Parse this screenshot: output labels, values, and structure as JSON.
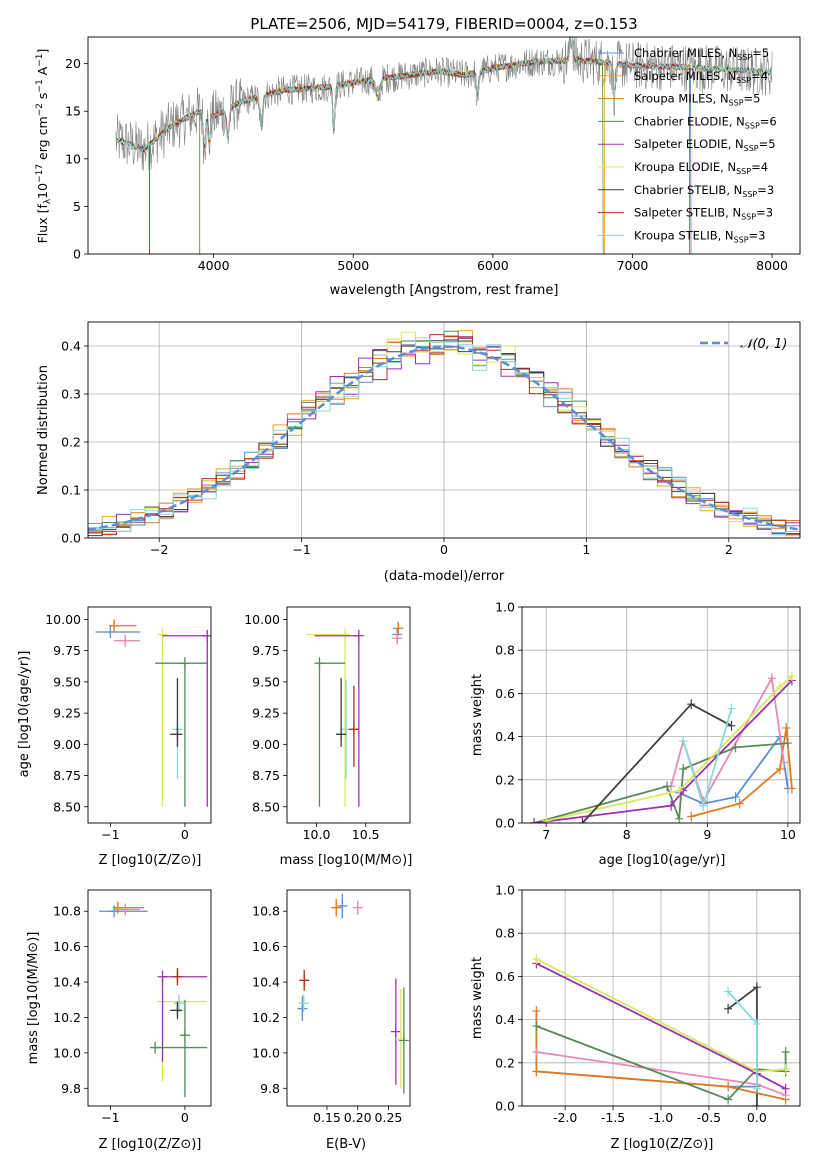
{
  "chart_data": [
    {
      "id": "spectrum",
      "type": "line",
      "title": "PLATE=2506, MJD=54179, FIBERID=0004, z=0.153",
      "xlabel": "wavelength [Angstrom, rest frame]",
      "ylabel": "Flux [f_λ 10^-17 erg cm^-2 s^-1 A^-1]",
      "xlim": [
        3100,
        8200
      ],
      "ylim": [
        0,
        22.8
      ],
      "xticks": [
        4000,
        5000,
        6000,
        7000,
        8000
      ],
      "yticks": [
        0,
        5,
        10,
        15,
        20
      ],
      "legend_placement": "top-right",
      "legend": [
        {
          "name": "Chabrier MILES",
          "nssp": "5",
          "color": "#5b8ed6"
        },
        {
          "name": "Salpeter MILES",
          "nssp": "4",
          "color": "#f0a030"
        },
        {
          "name": "Kroupa MILES",
          "nssp": "5",
          "color": "#e07b20"
        },
        {
          "name": "Chabrier ELODIE",
          "nssp": "6",
          "color": "#5a8a5a"
        },
        {
          "name": "Salpeter ELODIE",
          "nssp": "5",
          "color": "#9b30b0"
        },
        {
          "name": "Kroupa ELODIE",
          "nssp": "4",
          "color": "#d8e860"
        },
        {
          "name": "Chabrier STELIB",
          "nssp": "3",
          "color": "#404040"
        },
        {
          "name": "Salpeter STELIB",
          "nssp": "3",
          "color": "#b03020"
        },
        {
          "name": "Kroupa STELIB",
          "nssp": "3",
          "color": "#8adada"
        }
      ],
      "data_color": "#808080",
      "continuum": [
        [
          3300,
          12.0
        ],
        [
          3500,
          11.0
        ],
        [
          3700,
          13.5
        ],
        [
          3900,
          15.0
        ],
        [
          4000,
          14.5
        ],
        [
          4200,
          16.0
        ],
        [
          4500,
          17.2
        ],
        [
          4800,
          17.5
        ],
        [
          5000,
          18.0
        ],
        [
          5300,
          18.6
        ],
        [
          5600,
          19.2
        ],
        [
          5800,
          18.8
        ],
        [
          6000,
          19.5
        ],
        [
          6300,
          20.2
        ],
        [
          6600,
          20.4
        ],
        [
          7000,
          19.8
        ],
        [
          7400,
          19.6
        ],
        [
          7800,
          19.3
        ],
        [
          8000,
          19.1
        ]
      ]
    },
    {
      "id": "residuals",
      "type": "step",
      "xlabel": "(data-model)/error",
      "ylabel": "Normed distribution",
      "xlim": [
        -2.5,
        2.5
      ],
      "ylim": [
        0,
        0.45
      ],
      "xticks": [
        -2,
        -1,
        0,
        1,
        2
      ],
      "yticks": [
        0.0,
        0.1,
        0.2,
        0.3,
        0.4
      ],
      "grid": true,
      "legend": "N(0,1)",
      "bin_width": 0.1
    },
    {
      "id": "age_vs_Z",
      "type": "errorbar",
      "xlabel": "Z [log10(Z/Z⊙)]",
      "ylabel": "age  [log10(age/yr)]",
      "xlim": [
        -1.3,
        0.35
      ],
      "ylim": [
        8.37,
        10.1
      ],
      "xticks": [
        -1,
        0
      ],
      "yticks": [
        8.5,
        8.75,
        9.0,
        9.25,
        9.5,
        9.75,
        10.0
      ],
      "points": [
        {
          "x": -1.0,
          "y": 9.9,
          "xerr": [
            0.2,
            0.4
          ],
          "yerr": [
            0.0,
            0.0
          ],
          "color": "#5b8ed6"
        },
        {
          "x": -0.95,
          "y": 9.95,
          "xerr": [
            0.05,
            0.3
          ],
          "yerr": [
            0.05,
            0.05
          ],
          "color": "#e07b20"
        },
        {
          "x": -0.8,
          "y": 9.83,
          "xerr": [
            0.15,
            0.2
          ],
          "yerr": [
            0.05,
            0.05
          ],
          "color": "#e889b8"
        },
        {
          "x": -0.3,
          "y": 9.88,
          "xerr": [
            0.0,
            0.0
          ],
          "yerr": [
            1.38,
            0.0
          ],
          "color": "#d8e860"
        },
        {
          "x": 0.3,
          "y": 9.87,
          "xerr": [
            0.6,
            0.0
          ],
          "yerr": [
            1.37,
            0.0
          ],
          "color": "#9b30b0"
        },
        {
          "x": 0.0,
          "y": 9.65,
          "xerr": [
            0.4,
            0.3
          ],
          "yerr": [
            1.15,
            0.0
          ],
          "color": "#5a8a5a"
        },
        {
          "x": -0.1,
          "y": 9.12,
          "xerr": [
            0.05,
            0.05
          ],
          "yerr": [
            0.4,
            0.4
          ],
          "color": "#8adada"
        },
        {
          "x": -0.1,
          "y": 9.08,
          "xerr": [
            0.1,
            0.05
          ],
          "yerr": [
            0.1,
            0.45
          ],
          "color": "#404040"
        }
      ]
    },
    {
      "id": "age_vs_mass",
      "type": "errorbar",
      "xlabel": "mass [log10(M/M⊙)]",
      "ylabel": "",
      "xlim": [
        9.7,
        10.95
      ],
      "ylim": [
        8.37,
        10.1
      ],
      "xticks": [
        10.0,
        10.5
      ],
      "yticks": [
        8.5,
        8.75,
        9.0,
        9.25,
        9.5,
        9.75,
        10.0
      ],
      "points": [
        {
          "x": 10.83,
          "y": 9.93,
          "xerr": [
            0.02,
            0.02
          ],
          "yerr": [
            0.05,
            0.05
          ],
          "color": "#e07b20"
        },
        {
          "x": 10.82,
          "y": 9.88,
          "xerr": [
            0.01,
            0.02
          ],
          "yerr": [
            0.05,
            0.05
          ],
          "color": "#5b8ed6"
        },
        {
          "x": 10.82,
          "y": 9.85,
          "xerr": [
            0.02,
            0.02
          ],
          "yerr": [
            0.05,
            0.05
          ],
          "color": "#e889b8"
        },
        {
          "x": 10.29,
          "y": 9.88,
          "xerr": [
            0.39,
            0.0
          ],
          "yerr": [
            1.38,
            0.0
          ],
          "color": "#d8e860"
        },
        {
          "x": 10.43,
          "y": 9.87,
          "xerr": [
            0.45,
            0.0
          ],
          "yerr": [
            1.37,
            0.0
          ],
          "color": "#9b30b0"
        },
        {
          "x": 10.03,
          "y": 9.65,
          "xerr": [
            0.0,
            0.26
          ],
          "yerr": [
            1.15,
            0.0
          ],
          "color": "#5a8a5a"
        },
        {
          "x": 10.3,
          "y": 9.12,
          "xerr": [
            0.05,
            0.05
          ],
          "yerr": [
            0.4,
            0.4
          ],
          "color": "#8adada"
        },
        {
          "x": 10.38,
          "y": 9.12,
          "xerr": [
            0.05,
            0.05
          ],
          "yerr": [
            0.3,
            0.35
          ],
          "color": "#b03020"
        },
        {
          "x": 10.25,
          "y": 9.08,
          "xerr": [
            0.05,
            0.05
          ],
          "yerr": [
            0.1,
            0.45
          ],
          "color": "#404040"
        }
      ]
    },
    {
      "id": "weight_vs_age",
      "type": "line",
      "xlabel": "age  [log10(age/yr)]",
      "ylabel": "mass weight",
      "xlim": [
        6.7,
        10.15
      ],
      "ylim": [
        0,
        1.0
      ],
      "xticks": [
        7,
        8,
        9,
        10
      ],
      "yticks": [
        0.0,
        0.2,
        0.4,
        0.6,
        0.8,
        1.0
      ],
      "grid": true,
      "series": [
        {
          "color": "#5b8ed6",
          "points": [
            [
              8.65,
              0.14
            ],
            [
              8.95,
              0.09
            ],
            [
              9.35,
              0.12
            ],
            [
              9.9,
              0.4
            ],
            [
              10.0,
              0.16
            ]
          ]
        },
        {
          "color": "#e07b20",
          "points": [
            [
              8.8,
              0.03
            ],
            [
              9.4,
              0.09
            ],
            [
              9.9,
              0.25
            ],
            [
              9.98,
              0.44
            ],
            [
              10.05,
              0.16
            ]
          ]
        },
        {
          "color": "#e889b8",
          "points": [
            [
              8.55,
              0.17
            ],
            [
              8.7,
              0.38
            ],
            [
              8.95,
              0.1
            ],
            [
              9.8,
              0.67
            ],
            [
              9.95,
              0.28
            ]
          ]
        },
        {
          "color": "#5a8a5a",
          "points": [
            [
              6.85,
              0.0
            ],
            [
              8.5,
              0.17
            ],
            [
              8.65,
              0.02
            ],
            [
              8.7,
              0.25
            ],
            [
              9.35,
              0.35
            ],
            [
              10.0,
              0.37
            ]
          ]
        },
        {
          "color": "#9b30b0",
          "points": [
            [
              6.85,
              0.0
            ],
            [
              8.55,
              0.08
            ],
            [
              8.7,
              0.15
            ],
            [
              10.05,
              0.66
            ]
          ]
        },
        {
          "color": "#d8e860",
          "points": [
            [
              7.0,
              0.01
            ],
            [
              8.65,
              0.15
            ],
            [
              9.9,
              0.63
            ],
            [
              10.05,
              0.68
            ]
          ]
        },
        {
          "color": "#404040",
          "points": [
            [
              7.45,
              0.0
            ],
            [
              8.8,
              0.55
            ],
            [
              9.3,
              0.45
            ]
          ]
        },
        {
          "color": "#8adada",
          "points": [
            [
              8.7,
              0.38
            ],
            [
              8.95,
              0.08
            ],
            [
              9.3,
              0.53
            ]
          ]
        }
      ]
    },
    {
      "id": "mass_vs_Z",
      "type": "errorbar",
      "xlabel": "Z [log10(Z/Z⊙)]",
      "ylabel": "mass [log10(M/M⊙)]",
      "xlim": [
        -1.3,
        0.35
      ],
      "ylim": [
        9.7,
        10.92
      ],
      "xticks": [
        -1,
        0
      ],
      "yticks": [
        9.8,
        10.0,
        10.2,
        10.4,
        10.6,
        10.8
      ],
      "points": [
        {
          "x": -0.95,
          "y": 10.8,
          "xerr": [
            0.2,
            0.45
          ],
          "yerr": [
            0.0,
            0.0
          ],
          "color": "#5b8ed6"
        },
        {
          "x": -0.9,
          "y": 10.82,
          "xerr": [
            0.05,
            0.35
          ],
          "yerr": [
            0.03,
            0.03
          ],
          "color": "#e07b20"
        },
        {
          "x": -0.8,
          "y": 10.81,
          "xerr": [
            0.15,
            0.2
          ],
          "yerr": [
            0.03,
            0.03
          ],
          "color": "#e889b8"
        },
        {
          "x": -0.3,
          "y": 10.29,
          "xerr": [
            0.0,
            0.6
          ],
          "yerr": [
            0.45,
            0.0
          ],
          "color": "#d8e860"
        },
        {
          "x": -0.3,
          "y": 10.43,
          "xerr": [
            0.0,
            0.6
          ],
          "yerr": [
            0.48,
            0.0
          ],
          "color": "#9b30b0"
        },
        {
          "x": -0.4,
          "y": 10.03,
          "xerr": [
            0.0,
            0.7
          ],
          "yerr": [
            0.0,
            0.0
          ],
          "color": "#5a8a5a"
        },
        {
          "x": -0.1,
          "y": 10.43,
          "xerr": [
            0.05,
            0.05
          ],
          "yerr": [
            0.05,
            0.05
          ],
          "color": "#b03020"
        },
        {
          "x": -0.08,
          "y": 10.28,
          "xerr": [
            0.05,
            0.05
          ],
          "yerr": [
            0.05,
            0.05
          ],
          "color": "#8adada"
        },
        {
          "x": -0.1,
          "y": 10.24,
          "xerr": [
            0.1,
            0.05
          ],
          "yerr": [
            0.05,
            0.05
          ],
          "color": "#404040"
        },
        {
          "x": 0.0,
          "y": 10.1,
          "xerr": [
            0.0,
            0.0
          ],
          "yerr": [
            0.35,
            0.2
          ],
          "color": "#5a8a5a"
        }
      ]
    },
    {
      "id": "mass_vs_ebv",
      "type": "errorbar",
      "xlabel": "E(B-V)",
      "ylabel": "",
      "xlim": [
        0.085,
        0.285
      ],
      "ylim": [
        9.7,
        10.92
      ],
      "xticks": [
        0.15,
        0.2,
        0.25
      ],
      "yticks": [
        9.8,
        10.0,
        10.2,
        10.4,
        10.6,
        10.8
      ],
      "points": [
        {
          "x": 0.11,
          "y": 10.25,
          "xerr": [
            0,
            0
          ],
          "yerr": [
            0.07,
            0.07
          ],
          "color": "#5b8ed6"
        },
        {
          "x": 0.112,
          "y": 10.28,
          "xerr": [
            0,
            0
          ],
          "yerr": [
            0.05,
            0.05
          ],
          "color": "#8adada"
        },
        {
          "x": 0.113,
          "y": 10.41,
          "xerr": [
            0,
            0
          ],
          "yerr": [
            0.06,
            0.06
          ],
          "color": "#b03020"
        },
        {
          "x": 0.165,
          "y": 10.82,
          "xerr": [
            0,
            0
          ],
          "yerr": [
            0.05,
            0.05
          ],
          "color": "#e07b20"
        },
        {
          "x": 0.175,
          "y": 10.83,
          "xerr": [
            0,
            0
          ],
          "yerr": [
            0.07,
            0.07
          ],
          "color": "#5b8ed6"
        },
        {
          "x": 0.2,
          "y": 10.82,
          "xerr": [
            0,
            0
          ],
          "yerr": [
            0.04,
            0.04
          ],
          "color": "#e889b8"
        },
        {
          "x": 0.262,
          "y": 10.12,
          "xerr": [
            0,
            0
          ],
          "yerr": [
            0.3,
            0.3
          ],
          "color": "#9b30b0"
        },
        {
          "x": 0.27,
          "y": 10.08,
          "xerr": [
            0,
            0
          ],
          "yerr": [
            0.28,
            0.28
          ],
          "color": "#d8e860"
        },
        {
          "x": 0.275,
          "y": 10.07,
          "xerr": [
            0,
            0
          ],
          "yerr": [
            0.3,
            0.3
          ],
          "color": "#5a8a5a"
        }
      ]
    },
    {
      "id": "weight_vs_Z",
      "type": "line",
      "xlabel": "Z [log10(Z/Z⊙)]",
      "ylabel": "mass weight",
      "xlim": [
        -2.45,
        0.45
      ],
      "ylim": [
        0,
        1.0
      ],
      "xticks": [
        -2.0,
        -1.5,
        -1.0,
        -0.5,
        0.0
      ],
      "yticks": [
        0.0,
        0.2,
        0.4,
        0.6,
        0.8,
        1.0
      ],
      "grid": true,
      "series": [
        {
          "color": "#5b8ed6",
          "points": [
            [
              -2.3,
              0.16
            ],
            [
              -0.3,
              0.09
            ],
            [
              0.0,
              0.09
            ]
          ]
        },
        {
          "color": "#e07b20",
          "points": [
            [
              -2.3,
              0.44
            ],
            [
              -2.3,
              0.16
            ],
            [
              -0.3,
              0.09
            ],
            [
              0.3,
              0.03
            ]
          ]
        },
        {
          "color": "#e889b8",
          "points": [
            [
              -2.3,
              0.25
            ],
            [
              0.0,
              0.1
            ],
            [
              0.3,
              0.05
            ]
          ]
        },
        {
          "color": "#5a8a5a",
          "points": [
            [
              -2.3,
              0.37
            ],
            [
              -0.3,
              0.03
            ],
            [
              0.0,
              0.17
            ],
            [
              0.3,
              0.16
            ],
            [
              0.3,
              0.25
            ]
          ]
        },
        {
          "color": "#9b30b0",
          "points": [
            [
              -2.3,
              0.66
            ],
            [
              0.0,
              0.15
            ],
            [
              0.3,
              0.08
            ]
          ]
        },
        {
          "color": "#d8e860",
          "points": [
            [
              -2.3,
              0.68
            ],
            [
              0.0,
              0.16
            ],
            [
              0.3,
              0.17
            ]
          ]
        },
        {
          "color": "#404040",
          "points": [
            [
              -0.3,
              0.45
            ],
            [
              0.0,
              0.55
            ],
            [
              0.0,
              0.0
            ]
          ]
        },
        {
          "color": "#8adada",
          "points": [
            [
              -0.3,
              0.53
            ],
            [
              0.0,
              0.38
            ],
            [
              0.0,
              0.08
            ]
          ]
        }
      ]
    }
  ]
}
